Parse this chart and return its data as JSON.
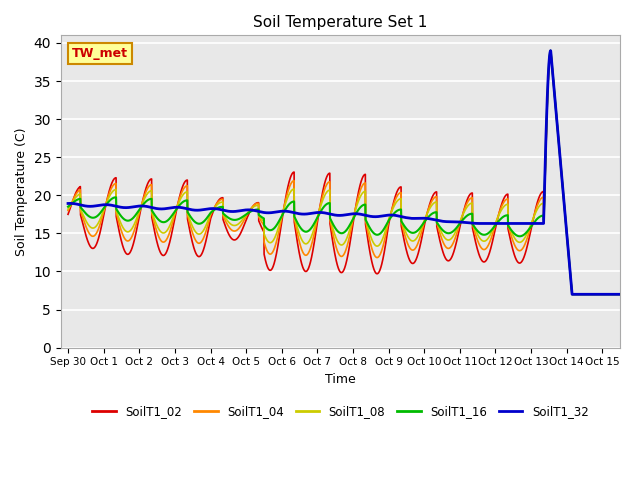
{
  "title": "Soil Temperature Set 1",
  "xlabel": "Time",
  "ylabel": "Soil Temperature (C)",
  "ylim": [
    0,
    41
  ],
  "xlim": [
    -0.2,
    15.5
  ],
  "bg_color": "#e8e8e8",
  "annotation_text": "TW_met",
  "annotation_bg": "#ffff99",
  "annotation_border": "#cc8800",
  "series": {
    "SoilT1_02": {
      "color": "#dd0000",
      "lw": 1.2
    },
    "SoilT1_04": {
      "color": "#ff8800",
      "lw": 1.2
    },
    "SoilT1_08": {
      "color": "#cccc00",
      "lw": 1.2
    },
    "SoilT1_16": {
      "color": "#00bb00",
      "lw": 1.5
    },
    "SoilT1_32": {
      "color": "#0000cc",
      "lw": 2.0
    }
  },
  "xtick_labels": [
    "Sep 30",
    "Oct 1",
    "Oct 2",
    "Oct 3",
    "Oct 4",
    "Oct 5",
    "Oct 6",
    "Oct 7",
    "Oct 8",
    "Oct 9",
    "Oct 10",
    "Oct 11",
    "Oct 12",
    "Oct 13",
    "Oct 14",
    "Oct 15"
  ],
  "xtick_positions": [
    0,
    1,
    2,
    3,
    4,
    5,
    6,
    7,
    8,
    9,
    10,
    11,
    12,
    13,
    14,
    15
  ]
}
